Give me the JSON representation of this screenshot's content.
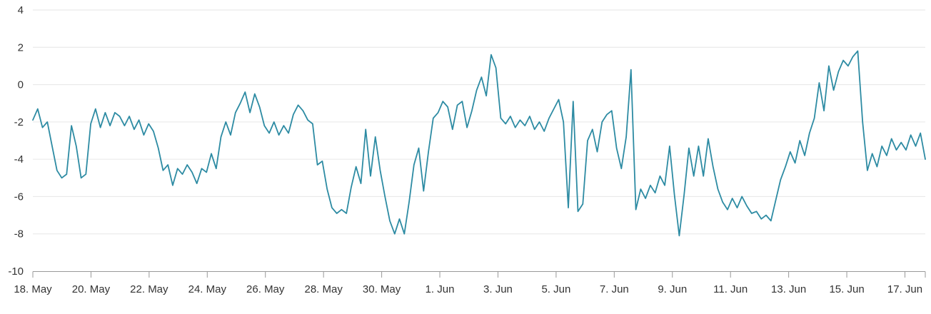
{
  "chart_data": {
    "type": "line",
    "title": "",
    "xlabel": "",
    "ylabel": "",
    "legend": false,
    "grid": true,
    "ylim": [
      -10,
      4
    ],
    "y_tick_interval": 2,
    "y_ticks": [
      4,
      2,
      0,
      -2,
      -4,
      -6,
      -8,
      -10
    ],
    "x_tick_labels": [
      "18. May",
      "20. May",
      "22. May",
      "24. May",
      "26. May",
      "28. May",
      "30. May",
      "1. Jun",
      "3. Jun",
      "5. Jun",
      "7. Jun",
      "9. Jun",
      "11. Jun",
      "13. Jun",
      "15. Jun",
      "17. Jun"
    ],
    "x_tick_interval_days": 2,
    "x_range_days": 30.7,
    "grid_color": "#e6e6e6",
    "axis_line_color": "#999999",
    "label_color": "#333333",
    "background_color": "#ffffff",
    "series": [
      {
        "name": "value",
        "color": "#2d8ba3",
        "values": [
          -1.9,
          -1.3,
          -2.3,
          -2.0,
          -3.3,
          -4.6,
          -5.0,
          -4.8,
          -2.2,
          -3.3,
          -5.0,
          -4.8,
          -2.1,
          -1.3,
          -2.3,
          -1.5,
          -2.2,
          -1.5,
          -1.7,
          -2.2,
          -1.7,
          -2.4,
          -1.9,
          -2.7,
          -2.1,
          -2.5,
          -3.4,
          -4.6,
          -4.3,
          -5.4,
          -4.5,
          -4.8,
          -4.3,
          -4.7,
          -5.3,
          -4.5,
          -4.7,
          -3.7,
          -4.5,
          -2.8,
          -2.0,
          -2.7,
          -1.5,
          -1.0,
          -0.4,
          -1.5,
          -0.5,
          -1.2,
          -2.2,
          -2.6,
          -2.0,
          -2.7,
          -2.2,
          -2.6,
          -1.6,
          -1.1,
          -1.4,
          -1.9,
          -2.1,
          -4.3,
          -4.1,
          -5.6,
          -6.6,
          -6.9,
          -6.7,
          -6.9,
          -5.5,
          -4.4,
          -5.3,
          -2.4,
          -4.9,
          -2.8,
          -4.6,
          -6.0,
          -7.3,
          -8.0,
          -7.2,
          -8.0,
          -6.3,
          -4.3,
          -3.4,
          -5.7,
          -3.6,
          -1.8,
          -1.5,
          -0.9,
          -1.2,
          -2.4,
          -1.1,
          -0.9,
          -2.3,
          -1.4,
          -0.3,
          0.4,
          -0.6,
          1.6,
          0.9,
          -1.8,
          -2.1,
          -1.7,
          -2.3,
          -1.9,
          -2.2,
          -1.7,
          -2.4,
          -2.0,
          -2.5,
          -1.8,
          -1.3,
          -0.8,
          -2.0,
          -6.6,
          -0.9,
          -6.8,
          -6.4,
          -3.0,
          -2.4,
          -3.6,
          -2.0,
          -1.6,
          -1.4,
          -3.4,
          -4.5,
          -2.8,
          0.8,
          -6.7,
          -5.6,
          -6.1,
          -5.4,
          -5.8,
          -4.9,
          -5.4,
          -3.3,
          -5.9,
          -8.1,
          -5.9,
          -3.4,
          -4.9,
          -3.3,
          -4.9,
          -2.9,
          -4.4,
          -5.6,
          -6.3,
          -6.7,
          -6.1,
          -6.6,
          -6.0,
          -6.5,
          -6.9,
          -6.8,
          -7.2,
          -7.0,
          -7.3,
          -6.2,
          -5.1,
          -4.4,
          -3.6,
          -4.2,
          -3.0,
          -3.8,
          -2.6,
          -1.8,
          0.1,
          -1.4,
          1.0,
          -0.3,
          0.7,
          1.3,
          1.0,
          1.5,
          1.8,
          -2.0,
          -4.6,
          -3.7,
          -4.4,
          -3.3,
          -3.8,
          -2.9,
          -3.5,
          -3.1,
          -3.5,
          -2.7,
          -3.3,
          -2.6,
          -4.0
        ]
      }
    ]
  }
}
